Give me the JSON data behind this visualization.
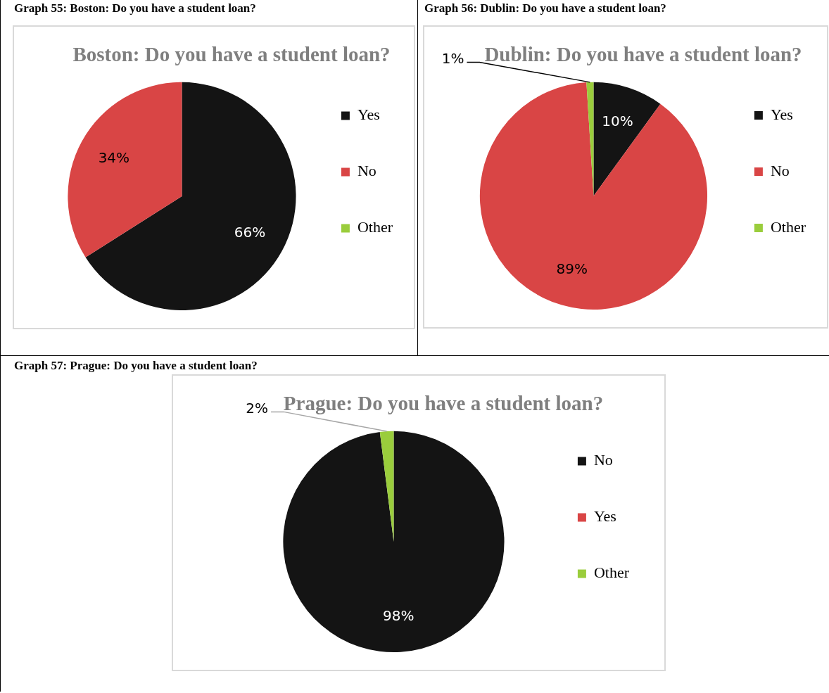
{
  "chart_data": [
    {
      "type": "pie",
      "title": "Boston: Do you have a student loan?",
      "annotations": [
        "Graph 55: Boston: Do you have a student loan?"
      ],
      "categories": [
        "Yes",
        "No",
        "Other"
      ],
      "values": [
        66,
        34,
        0
      ],
      "value_labels": [
        "66%",
        "34%",
        null
      ],
      "colors": [
        "#141414",
        "#d94545",
        "#9acd3c"
      ],
      "legend": "right"
    },
    {
      "type": "pie",
      "title": "Dublin: Do you have a student loan?",
      "annotations": [
        "Graph 56: Dublin: Do you have a student loan?"
      ],
      "categories": [
        "Yes",
        "No",
        "Other"
      ],
      "values": [
        10,
        89,
        1
      ],
      "value_labels": [
        "10%",
        "89%",
        "1%"
      ],
      "colors": [
        "#141414",
        "#d94545",
        "#9acd3c"
      ],
      "legend": "right"
    },
    {
      "type": "pie",
      "title": "Prague: Do you have a student loan?",
      "annotations": [
        "Graph 57: Prague: Do you have a student loan?"
      ],
      "categories": [
        "No",
        "Yes",
        "Other"
      ],
      "values": [
        98,
        0,
        2
      ],
      "value_labels": [
        "98%",
        null,
        "2%"
      ],
      "colors": [
        "#141414",
        "#d94545",
        "#9acd3c"
      ],
      "legend": "right"
    }
  ]
}
